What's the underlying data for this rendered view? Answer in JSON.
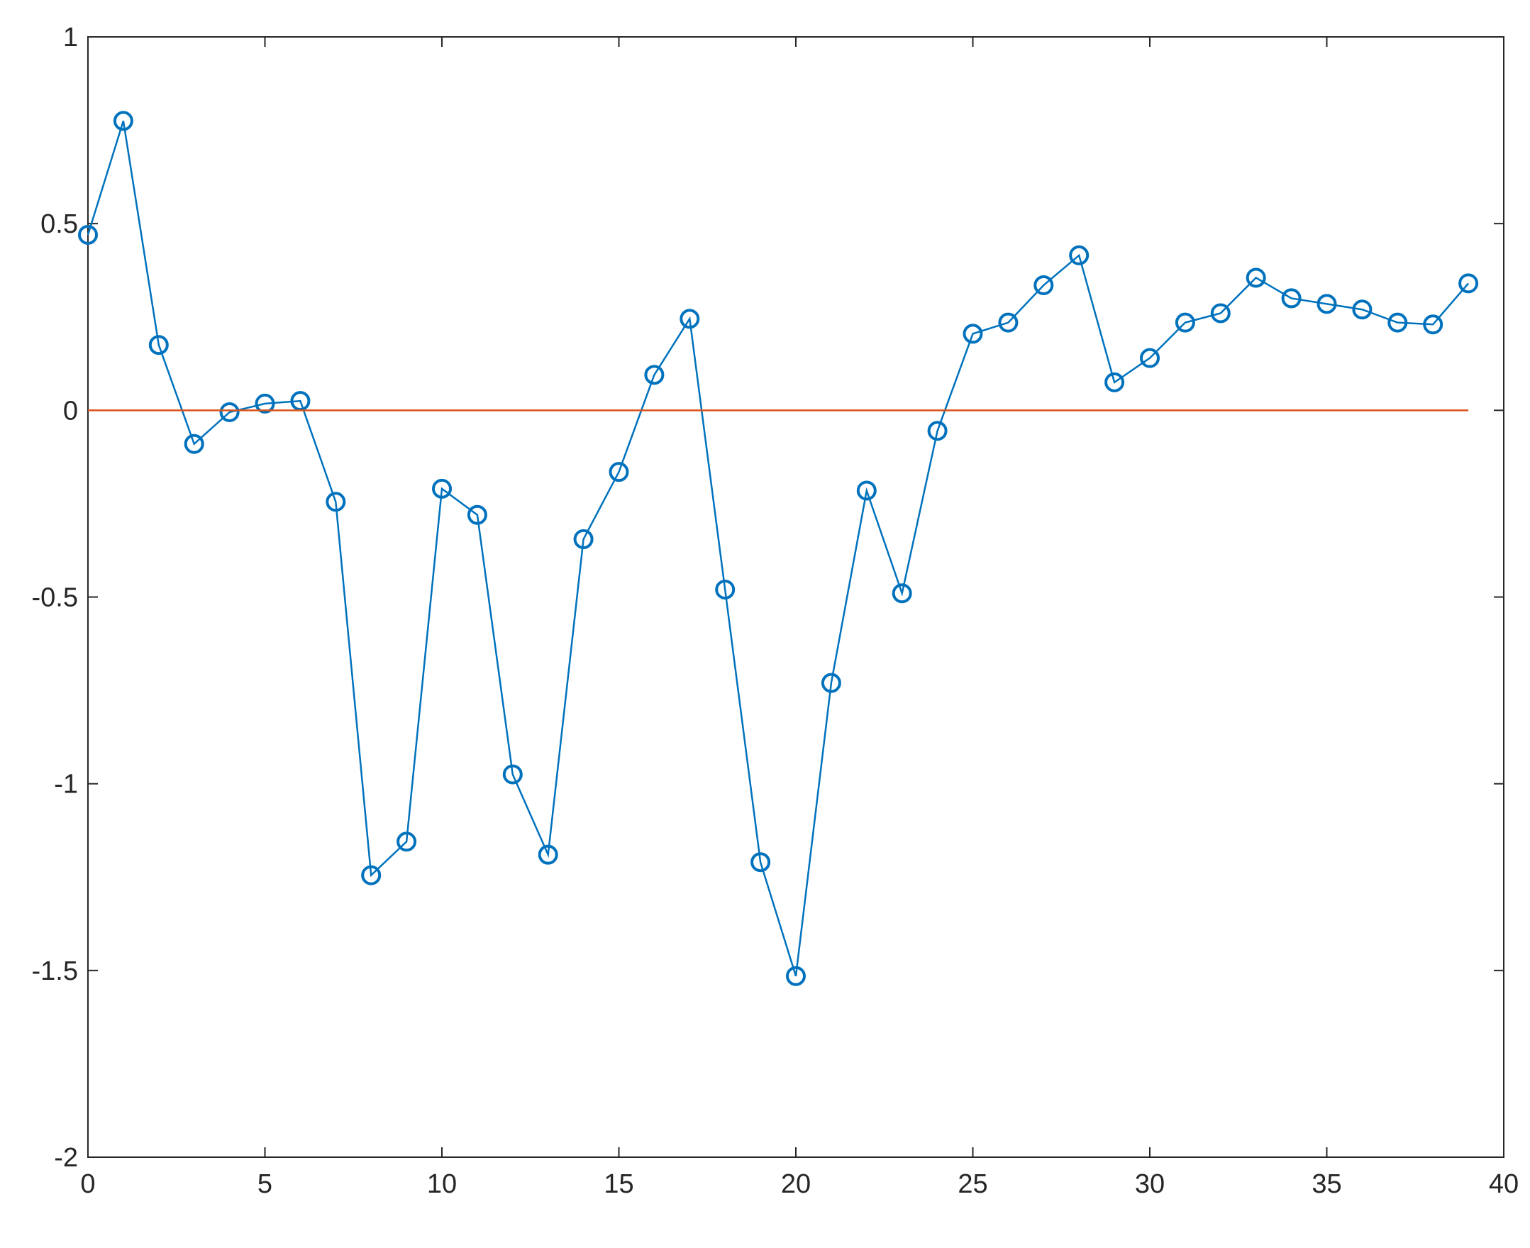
{
  "chart_data": {
    "type": "line",
    "xlim": [
      0,
      40
    ],
    "xticks": [
      0,
      5,
      10,
      15,
      20,
      25,
      30,
      35,
      40
    ],
    "ylim": [
      -2,
      1
    ],
    "yticks": [
      -2,
      -1.5,
      -1,
      -0.5,
      0,
      0.5,
      1
    ],
    "grid": false,
    "series": [
      {
        "color": "#0072bd",
        "marker": "circle",
        "x": [
          0,
          1,
          2,
          3,
          4,
          5,
          6,
          7,
          8,
          9,
          10,
          11,
          12,
          13,
          14,
          15,
          16,
          17,
          18,
          19,
          20,
          21,
          22,
          23,
          24,
          25,
          26,
          27,
          28,
          29,
          30,
          31,
          32,
          33,
          34,
          35,
          36,
          37,
          38,
          39
        ],
        "values": [
          0.47,
          0.775,
          0.175,
          -0.09,
          -0.005,
          0.018,
          0.025,
          -0.245,
          -1.245,
          -1.155,
          -0.21,
          -0.28,
          -0.975,
          -1.19,
          -0.345,
          -0.165,
          0.095,
          0.245,
          -0.48,
          -1.21,
          -1.515,
          -0.73,
          -0.215,
          -0.49,
          -0.055,
          0.205,
          0.235,
          0.335,
          0.415,
          0.075,
          0.14,
          0.235,
          0.26,
          0.355,
          0.3,
          0.285,
          0.27,
          0.235,
          0.23,
          0.34
        ]
      },
      {
        "color": "#d95319",
        "x": [
          0,
          39
        ],
        "values": [
          0,
          0
        ]
      }
    ]
  }
}
